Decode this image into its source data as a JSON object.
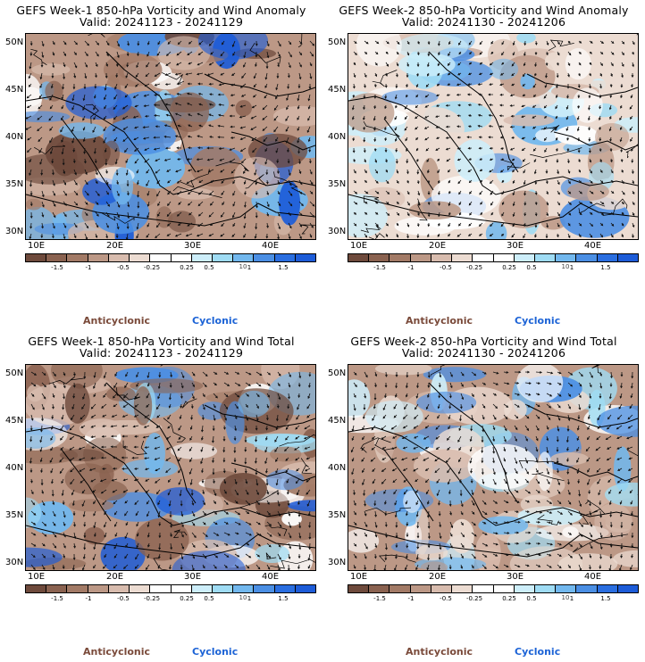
{
  "panels": [
    {
      "title_line1": "GEFS Week-1 850-hPa Vorticity and Wind Anomaly",
      "title_line2": "Valid: 20241123 - 20241129"
    },
    {
      "title_line1": "GEFS Week-2 850-hPa Vorticity and Wind Anomaly",
      "title_line2": "Valid: 20241130 - 20241206"
    },
    {
      "title_line1": "GEFS Week-1 850-hPa Vorticity and Wind Total",
      "title_line2": "Valid: 20241123 - 20241129"
    },
    {
      "title_line1": "GEFS Week-2 850-hPa Vorticity and Wind Total",
      "title_line2": "Valid: 20241130 - 20241206"
    }
  ],
  "lat_labels": [
    "50N",
    "45N",
    "40N",
    "35N",
    "30N"
  ],
  "lon_labels": [
    "10E",
    "20E",
    "30E",
    "40E"
  ],
  "colorbar": {
    "labels": [
      "-1.5",
      "-1",
      "-0.5",
      "-0.25",
      "0.25",
      "0.5",
      "1",
      "1.5"
    ],
    "scale_note": "10",
    "colors": [
      "#6e4a3c",
      "#8a6250",
      "#a27a66",
      "#bc9886",
      "#d8bcae",
      "#ecdcd2",
      "#ffffff",
      "#ffffff",
      "#cdeefa",
      "#9fdcf4",
      "#72b8ee",
      "#4b8fe4",
      "#2a6ee0",
      "#1d5cd8"
    ]
  },
  "legend": {
    "anticyclonic": "Anticyclonic",
    "cyclonic": "Cyclonic"
  }
}
